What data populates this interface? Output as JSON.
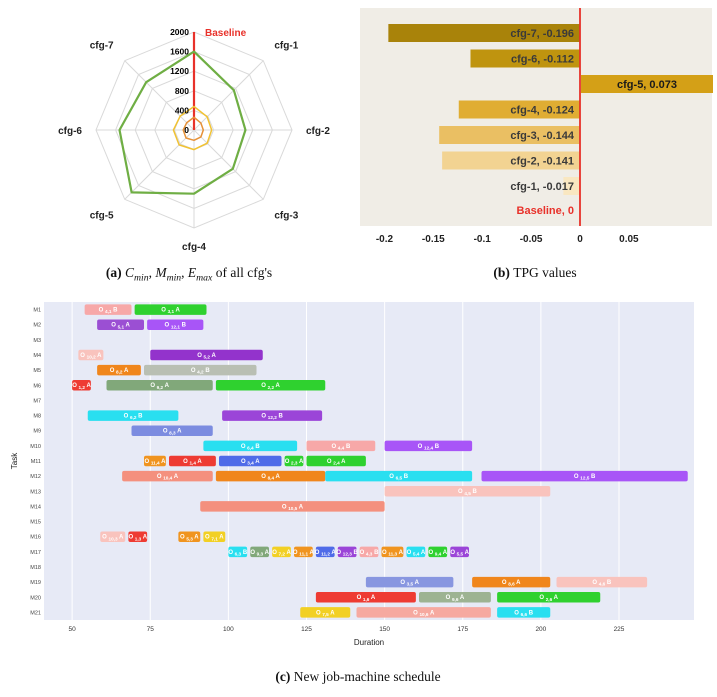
{
  "figure": {
    "captions": {
      "a": [
        {
          "t": "(a) ",
          "s": "b"
        },
        {
          "t": "C",
          "s": "i"
        },
        {
          "t": "min",
          "s": "sub"
        },
        {
          "t": ", ",
          "s": "p"
        },
        {
          "t": "M",
          "s": "i"
        },
        {
          "t": "min",
          "s": "sub"
        },
        {
          "t": ", ",
          "s": "p"
        },
        {
          "t": "E",
          "s": "i"
        },
        {
          "t": "max",
          "s": "sub"
        },
        {
          "t": " of all cfg's",
          "s": "p"
        }
      ],
      "b": [
        {
          "t": "(b) ",
          "s": "b"
        },
        {
          "t": "TPG values",
          "s": "p"
        }
      ],
      "c": [
        {
          "t": "(c) ",
          "s": "b"
        },
        {
          "t": "New job-machine schedule",
          "s": "p"
        }
      ]
    }
  },
  "chart_data": [
    {
      "type": "radar",
      "axes": [
        "Baseline",
        "cfg-1",
        "cfg-2",
        "cfg-3",
        "cfg-4",
        "cfg-5",
        "cfg-6",
        "cfg-7"
      ],
      "max_value": 2000,
      "rings": 5,
      "radial_ticks": [
        0,
        400,
        800,
        1200,
        1600,
        2000
      ],
      "grid_color": "#d9d9d9",
      "axis_label_color": "#222222",
      "baseline": {
        "label": "Baseline",
        "color": "#e8312a"
      },
      "series": [
        {
          "name": "C_min",
          "color": "#e69138",
          "width": 1.5,
          "values": [
            260,
            200,
            190,
            200,
            210,
            230,
            220,
            210
          ]
        },
        {
          "name": "M_min",
          "color": "#f1c232",
          "width": 1.5,
          "values": [
            480,
            380,
            360,
            380,
            400,
            430,
            420,
            400
          ]
        },
        {
          "name": "E_max",
          "color": "#6fae44",
          "width": 2.2,
          "values": [
            1600,
            1150,
            1050,
            1120,
            1300,
            1800,
            1520,
            1380
          ]
        }
      ]
    },
    {
      "type": "bar",
      "orientation": "horizontal",
      "plot_bg": "#f0ede6",
      "zero_line_color": "#e8312a",
      "x_ticks": [
        -0.2,
        -0.15,
        -0.1,
        -0.05,
        0,
        0.05
      ],
      "x_tick_labels": [
        "-0.2",
        "-0.15",
        "-0.1",
        "-0.05",
        "0",
        "0.05"
      ],
      "xlim": [
        -0.225,
        0.135
      ],
      "categories": [
        "cfg-7",
        "cfg-6",
        "cfg-5",
        "cfg-4",
        "cfg-3",
        "cfg-2",
        "cfg-1",
        "Baseline"
      ],
      "values": [
        -0.196,
        -0.112,
        0.073,
        -0.124,
        -0.144,
        -0.141,
        -0.017,
        0
      ],
      "bar_labels": [
        "cfg-7, -0.196",
        "cfg-6, -0.112",
        "cfg-5, 0.073",
        "cfg-4, -0.124",
        "cfg-3, -0.144",
        "cfg-2, -0.141",
        "cfg-1, -0.017",
        "Baseline, 0"
      ],
      "bar_colors": [
        "#a9830a",
        "#bf940f",
        "#d4a017",
        "#e0ad33",
        "#eabf63",
        "#f2d392",
        "#f9e7c1",
        null
      ],
      "label_color": "#3a3a3a",
      "baseline_label_color": "#e8312a",
      "highlight_index": 2
    },
    {
      "type": "gantt",
      "xlabel": "Duration",
      "ylabel": "Task",
      "x_ticks": [
        50,
        75,
        100,
        125,
        150,
        175,
        200,
        225
      ],
      "xlim": [
        41,
        249
      ],
      "plot_bg": "#e7eaf6",
      "grid_color": "#ffffff",
      "machines": [
        "M1",
        "M2",
        "M3",
        "M4",
        "M5",
        "M6",
        "M7",
        "M8",
        "M9",
        "M10",
        "M11",
        "M12",
        "M13",
        "M14",
        "M15",
        "M16",
        "M17",
        "M18",
        "M19",
        "M20",
        "M21"
      ],
      "bars": [
        {
          "m": "M1",
          "label": "O 4,1 B",
          "s": 54,
          "e": 69,
          "c": "#f7a8a8"
        },
        {
          "m": "M1",
          "label": "O 3,1 A",
          "s": 70,
          "e": 93,
          "c": "#2fd12f"
        },
        {
          "m": "M2",
          "label": "O 5,1 A",
          "s": 58,
          "e": 73,
          "c": "#9b4fd3"
        },
        {
          "m": "M2",
          "label": "O 12,1 B",
          "s": 74,
          "e": 92,
          "c": "#a855f7"
        },
        {
          "m": "M4",
          "label": "O 10,2 A",
          "s": 52,
          "e": 60,
          "c": "#f9c3bd"
        },
        {
          "m": "M4",
          "label": "O 5,2 A",
          "s": 75,
          "e": 111,
          "c": "#9333cc"
        },
        {
          "m": "M5",
          "label": "O 8,2 A",
          "s": 58,
          "e": 72,
          "c": "#f0861c"
        },
        {
          "m": "M5",
          "label": "O 4,2 B",
          "s": 73,
          "e": 109,
          "c": "#b9bfb3"
        },
        {
          "m": "M6",
          "label": "O 1,2 A",
          "s": 50,
          "e": 56,
          "c": "#ee3b33"
        },
        {
          "m": "M6",
          "label": "O 9,2 A",
          "s": 61,
          "e": 95,
          "c": "#81a87a"
        },
        {
          "m": "M6",
          "label": "O 2,2 A",
          "s": 96,
          "e": 131,
          "c": "#2fd12f"
        },
        {
          "m": "M8",
          "label": "O 6,2 B",
          "s": 55,
          "e": 84,
          "c": "#29dff0"
        },
        {
          "m": "M8",
          "label": "O 12,2 B",
          "s": 98,
          "e": 130,
          "c": "#9b45d8"
        },
        {
          "m": "M9",
          "label": "O 8,3 A",
          "s": 69,
          "e": 95,
          "c": "#7c8ce0"
        },
        {
          "m": "M10",
          "label": "O 6,4 B",
          "s": 92,
          "e": 122,
          "c": "#29dff0"
        },
        {
          "m": "M10",
          "label": "O 4,4 B",
          "s": 125,
          "e": 147,
          "c": "#f7a8a8"
        },
        {
          "m": "M10",
          "label": "O 12,4 B",
          "s": 150,
          "e": 178,
          "c": "#a855f7"
        },
        {
          "m": "M11",
          "label": "O 11,4 A",
          "s": 73,
          "e": 80,
          "c": "#f0941f"
        },
        {
          "m": "M11",
          "label": "O 1,4 A",
          "s": 81,
          "e": 96,
          "c": "#ee3b33"
        },
        {
          "m": "M11",
          "label": "O 3,4 A",
          "s": 97,
          "e": 117,
          "c": "#4f6be8"
        },
        {
          "m": "M11",
          "label": "O 2,3 A",
          "s": 118,
          "e": 124,
          "c": "#2fd12f"
        },
        {
          "m": "M11",
          "label": "O 2,4 A",
          "s": 125,
          "e": 144,
          "c": "#2fd12f"
        },
        {
          "m": "M12",
          "label": "O 10,4 A",
          "s": 66,
          "e": 95,
          "c": "#f4907e"
        },
        {
          "m": "M12",
          "label": "O 8,4 A",
          "s": 96,
          "e": 131,
          "c": "#f0861c"
        },
        {
          "m": "M12",
          "label": "O 6,5 B",
          "s": 131,
          "e": 178,
          "c": "#29dff0"
        },
        {
          "m": "M12",
          "label": "O 12,5 B",
          "s": 181,
          "e": 247,
          "c": "#a855f7"
        },
        {
          "m": "M13",
          "label": "O 4,5 B",
          "s": 150,
          "e": 203,
          "c": "#f9c3bd"
        },
        {
          "m": "M14",
          "label": "O 10,5 A",
          "s": 91,
          "e": 150,
          "c": "#f4907e"
        },
        {
          "m": "M16",
          "label": "O 10,3 A",
          "s": 59,
          "e": 67,
          "c": "#f9c3bd"
        },
        {
          "m": "M16",
          "label": "O 1,3 A",
          "s": 68,
          "e": 74,
          "c": "#ee3b33"
        },
        {
          "m": "M16",
          "label": "O 5,3 A",
          "s": 84,
          "e": 91,
          "c": "#f0941f"
        },
        {
          "m": "M16",
          "label": "O 7,1 A",
          "s": 92,
          "e": 99,
          "c": "#f2d024"
        },
        {
          "m": "M17",
          "label": "O 6,3 B",
          "s": 100,
          "e": 106,
          "c": "#29dff0"
        },
        {
          "m": "M17",
          "label": "O 9,3 A",
          "s": 107,
          "e": 113,
          "c": "#81a87a"
        },
        {
          "m": "M17",
          "label": "O 7,2 A",
          "s": 114,
          "e": 120,
          "c": "#f2d024"
        },
        {
          "m": "M17",
          "label": "O 11,1 A",
          "s": 121,
          "e": 127,
          "c": "#f0941f"
        },
        {
          "m": "M17",
          "label": "O 11,2 A",
          "s": 128,
          "e": 134,
          "c": "#4f6be8"
        },
        {
          "m": "M17",
          "label": "O 12,3 B",
          "s": 135,
          "e": 141,
          "c": "#9b45d8"
        },
        {
          "m": "M17",
          "label": "O 4,3 B",
          "s": 142,
          "e": 148,
          "c": "#f7a8a8"
        },
        {
          "m": "M17",
          "label": "O 11,3 A",
          "s": 149,
          "e": 156,
          "c": "#f0941f"
        },
        {
          "m": "M17",
          "label": "O 5,4 A",
          "s": 157,
          "e": 163,
          "c": "#29dff0"
        },
        {
          "m": "M17",
          "label": "O 9,4 A",
          "s": 164,
          "e": 170,
          "c": "#2fd12f"
        },
        {
          "m": "M17",
          "label": "O 5,5 A",
          "s": 171,
          "e": 177,
          "c": "#9b45d8"
        },
        {
          "m": "M19",
          "label": "O 3,5 A",
          "s": 144,
          "e": 172,
          "c": "#8896e0"
        },
        {
          "m": "M19",
          "label": "O 8,6 A",
          "s": 178,
          "e": 203,
          "c": "#f0861c"
        },
        {
          "m": "M19",
          "label": "O 4,6 B",
          "s": 205,
          "e": 234,
          "c": "#f9c3bd"
        },
        {
          "m": "M20",
          "label": "O 1,6 A",
          "s": 128,
          "e": 160,
          "c": "#ee3b33"
        },
        {
          "m": "M20",
          "label": "O 9,6 A",
          "s": 161,
          "e": 184,
          "c": "#9db392"
        },
        {
          "m": "M20",
          "label": "O 2,6 A",
          "s": 186,
          "e": 219,
          "c": "#2fd12f"
        },
        {
          "m": "M21",
          "label": "O 7,5 A",
          "s": 123,
          "e": 139,
          "c": "#f2d024"
        },
        {
          "m": "M21",
          "label": "O 10,6 A",
          "s": 141,
          "e": 184,
          "c": "#f6a9a0"
        },
        {
          "m": "M21",
          "label": "O 6,6 B",
          "s": 186,
          "e": 203,
          "c": "#29dff0"
        }
      ]
    }
  ]
}
